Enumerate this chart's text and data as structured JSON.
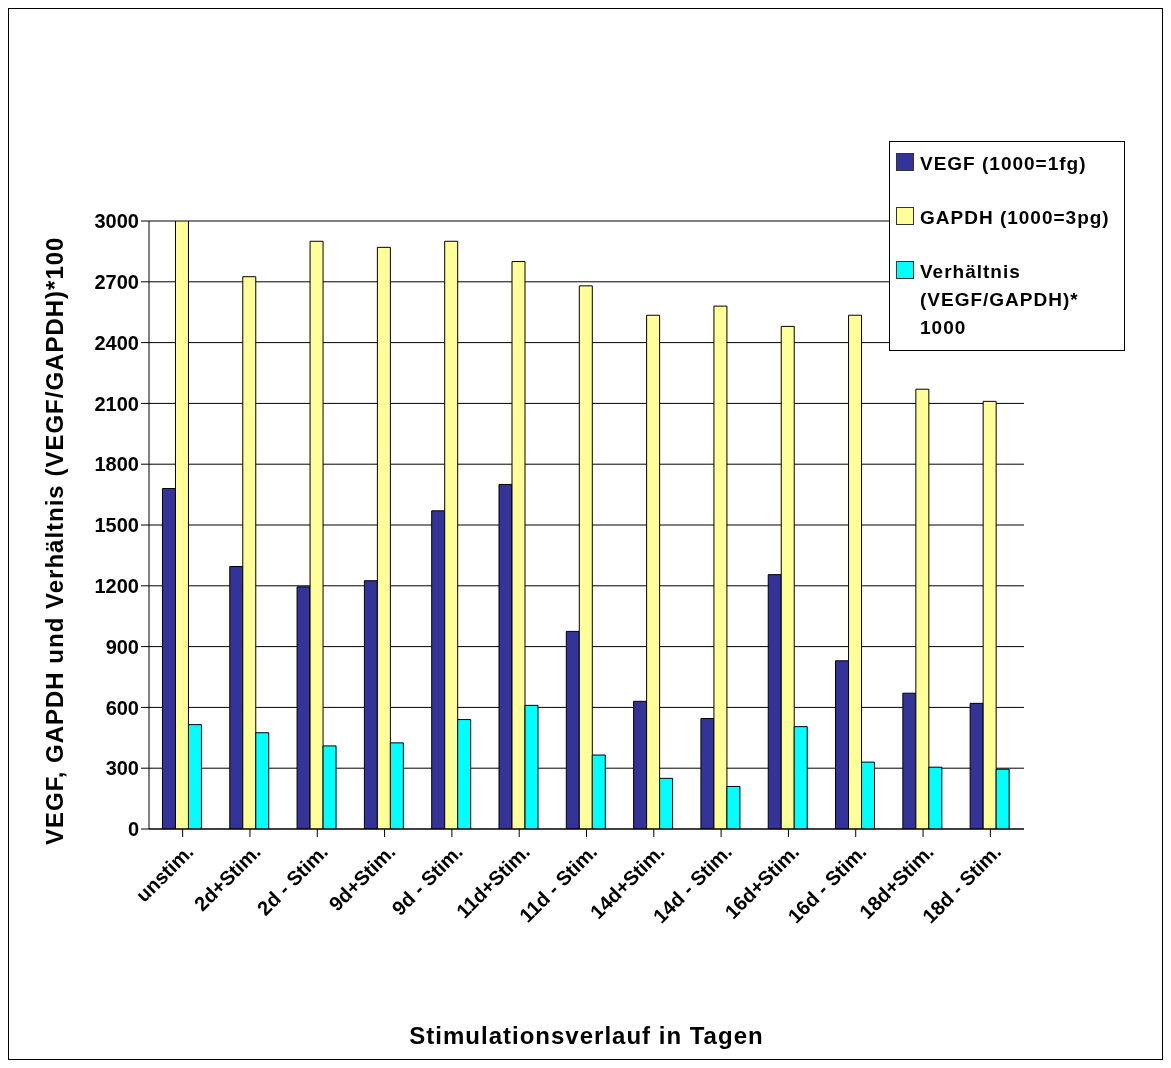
{
  "chart_data": {
    "type": "bar",
    "xlabel": "Stimulationsverlauf in Tagen",
    "ylabel": "VEGF, GAPDH und Verhältnis (VEGF/GAPDH)*100",
    "categories": [
      "unstim.",
      "2d+Stim.",
      "2d - Stim.",
      "9d+Stim.",
      "9d - Stim.",
      "11d+Stim.",
      "11d - Stim.",
      "14d+Stim.",
      "14d - Stim.",
      "16d+Stim.",
      "16d - Stim.",
      "18d+Stim.",
      "18d - Stim."
    ],
    "series": [
      {
        "name": "VEGF (1000=1fg)",
        "color": "#333399",
        "values": [
          1680,
          1295,
          1195,
          1225,
          1570,
          1700,
          975,
          630,
          545,
          1255,
          830,
          670,
          620
        ]
      },
      {
        "name": "GAPDH (1000=3pg)",
        "color": "#ffff99",
        "values": [
          3000,
          2725,
          2900,
          2870,
          2900,
          2800,
          2680,
          2535,
          2580,
          2480,
          2535,
          2170,
          2110
        ]
      },
      {
        "name": "Verhältnis (VEGF/GAPDH)* 1000",
        "color": "#00ffff",
        "values": [
          515,
          475,
          410,
          425,
          540,
          610,
          365,
          250,
          210,
          505,
          330,
          305,
          295
        ]
      }
    ],
    "ylim": [
      0,
      3000
    ],
    "yticks": [
      0,
      300,
      600,
      900,
      1200,
      1500,
      1800,
      2100,
      2400,
      2700,
      3000
    ],
    "grid": "y",
    "legend": "top right"
  }
}
